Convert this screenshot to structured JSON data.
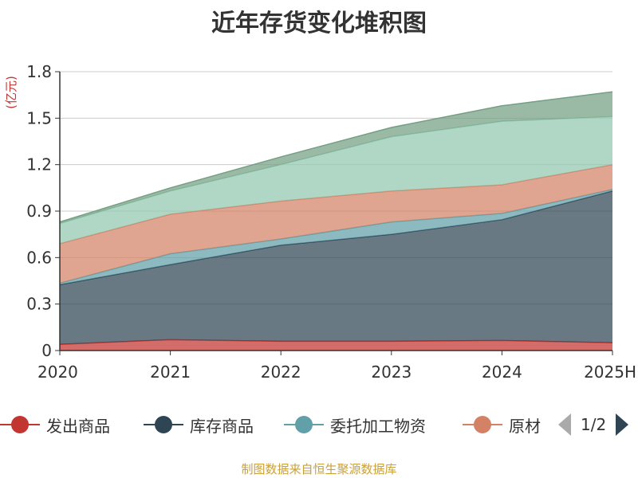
{
  "chart_data": {
    "type": "area",
    "stacked": true,
    "title": "近年存货变化堆积图",
    "ylabel": "(亿元)",
    "ylim": [
      0,
      1.8
    ],
    "yticks": [
      "0",
      "0.3",
      "0.6",
      "0.9",
      "1.2",
      "1.5",
      "1.8"
    ],
    "categories": [
      "2020",
      "2021",
      "2022",
      "2023",
      "2024",
      "2025H"
    ],
    "grid": true,
    "legend_position": "bottom",
    "series": [
      {
        "name": "发出商品",
        "color": "#c23531",
        "values": [
          0.04,
          0.07,
          0.06,
          0.06,
          0.065,
          0.05
        ]
      },
      {
        "name": "库存商品",
        "color": "#2f4554",
        "values": [
          0.385,
          0.485,
          0.62,
          0.69,
          0.78,
          0.98
        ]
      },
      {
        "name": "委托加工物资",
        "color": "#61a0a8",
        "values": [
          0.01,
          0.07,
          0.04,
          0.08,
          0.04,
          0.01
        ]
      },
      {
        "name": "原材料",
        "color": "#d48265",
        "values": [
          0.255,
          0.255,
          0.245,
          0.2,
          0.185,
          0.16
        ]
      },
      {
        "name": "",
        "color": "#91c7ae",
        "values": [
          0.13,
          0.15,
          0.235,
          0.35,
          0.41,
          0.31
        ]
      },
      {
        "name": "",
        "color": "#749f83",
        "values": [
          0.01,
          0.02,
          0.05,
          0.06,
          0.1,
          0.16
        ]
      }
    ]
  },
  "legend": {
    "visible_labels": [
      "发出商品",
      "库存商品",
      "委托加工物资",
      "原材"
    ],
    "page_indicator": "1/2"
  },
  "source_note": "制图数据来自恒生聚源数据库"
}
